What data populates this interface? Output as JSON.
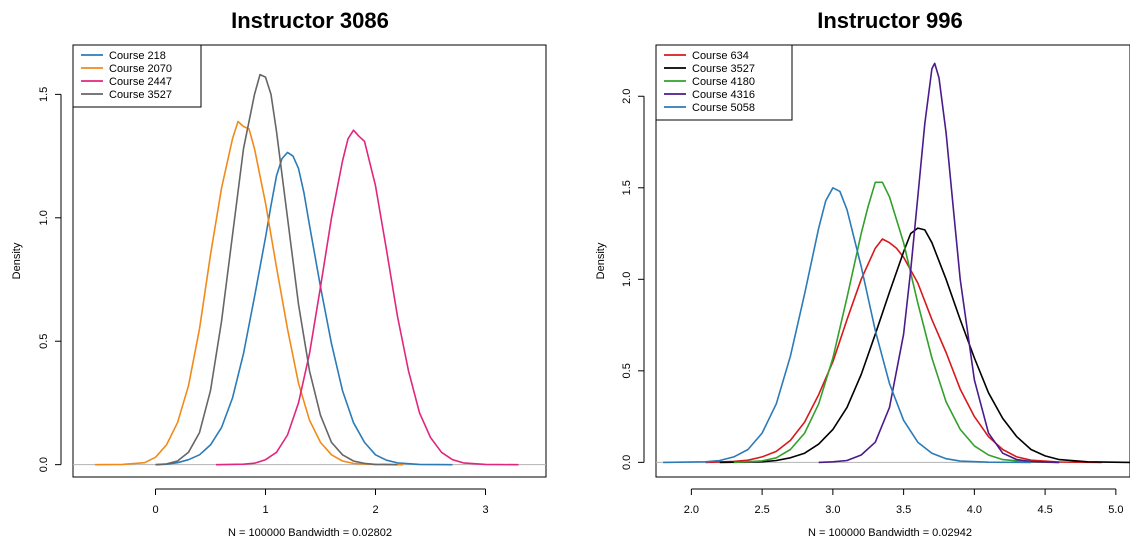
{
  "chart_data": [
    {
      "type": "line",
      "title": "Instructor  3086",
      "xlabel": "N = 100000   Bandwidth = 0.02802",
      "ylabel": "Density",
      "xlim": [
        -0.75,
        3.55
      ],
      "ylim": [
        -0.05,
        1.7
      ],
      "xticks": [
        0,
        1,
        2,
        3
      ],
      "yticks": [
        0.0,
        0.5,
        1.0,
        1.5
      ],
      "xtick_labels": [
        "0",
        "1",
        "2",
        "3"
      ],
      "ytick_labels": [
        "0.0",
        "0.5",
        "1.0",
        "1.5"
      ],
      "legend_position": "top-left",
      "series": [
        {
          "name": "Course 218",
          "color": "#2b7bb9",
          "points": [
            [
              0.0,
              0.0
            ],
            [
              0.1,
              0.002
            ],
            [
              0.2,
              0.008
            ],
            [
              0.3,
              0.02
            ],
            [
              0.4,
              0.04
            ],
            [
              0.5,
              0.08
            ],
            [
              0.6,
              0.15
            ],
            [
              0.7,
              0.27
            ],
            [
              0.8,
              0.45
            ],
            [
              0.9,
              0.68
            ],
            [
              1.0,
              0.92
            ],
            [
              1.05,
              1.05
            ],
            [
              1.1,
              1.17
            ],
            [
              1.15,
              1.24
            ],
            [
              1.2,
              1.265
            ],
            [
              1.25,
              1.25
            ],
            [
              1.3,
              1.2
            ],
            [
              1.35,
              1.1
            ],
            [
              1.4,
              0.97
            ],
            [
              1.5,
              0.72
            ],
            [
              1.6,
              0.49
            ],
            [
              1.7,
              0.3
            ],
            [
              1.8,
              0.17
            ],
            [
              1.9,
              0.09
            ],
            [
              2.0,
              0.04
            ],
            [
              2.1,
              0.018
            ],
            [
              2.2,
              0.007
            ],
            [
              2.4,
              0.001
            ],
            [
              2.7,
              0.0
            ]
          ]
        },
        {
          "name": "Course 2070",
          "color": "#f28a1a",
          "points": [
            [
              -0.55,
              0.0
            ],
            [
              -0.3,
              0.001
            ],
            [
              -0.1,
              0.008
            ],
            [
              0.0,
              0.03
            ],
            [
              0.1,
              0.08
            ],
            [
              0.2,
              0.17
            ],
            [
              0.3,
              0.32
            ],
            [
              0.4,
              0.55
            ],
            [
              0.5,
              0.85
            ],
            [
              0.6,
              1.12
            ],
            [
              0.7,
              1.32
            ],
            [
              0.75,
              1.39
            ],
            [
              0.8,
              1.37
            ],
            [
              0.85,
              1.36
            ],
            [
              0.9,
              1.28
            ],
            [
              1.0,
              1.06
            ],
            [
              1.1,
              0.8
            ],
            [
              1.2,
              0.55
            ],
            [
              1.3,
              0.33
            ],
            [
              1.4,
              0.18
            ],
            [
              1.5,
              0.09
            ],
            [
              1.6,
              0.04
            ],
            [
              1.7,
              0.015
            ],
            [
              1.8,
              0.005
            ],
            [
              2.0,
              0.001
            ],
            [
              2.25,
              0.0
            ]
          ]
        },
        {
          "name": "Course 2447",
          "color": "#e0267f",
          "points": [
            [
              0.55,
              0.0
            ],
            [
              0.8,
              0.002
            ],
            [
              0.9,
              0.006
            ],
            [
              1.0,
              0.02
            ],
            [
              1.1,
              0.05
            ],
            [
              1.2,
              0.12
            ],
            [
              1.3,
              0.25
            ],
            [
              1.4,
              0.45
            ],
            [
              1.5,
              0.72
            ],
            [
              1.6,
              1.0
            ],
            [
              1.7,
              1.23
            ],
            [
              1.75,
              1.32
            ],
            [
              1.8,
              1.355
            ],
            [
              1.85,
              1.33
            ],
            [
              1.9,
              1.31
            ],
            [
              2.0,
              1.13
            ],
            [
              2.1,
              0.87
            ],
            [
              2.2,
              0.6
            ],
            [
              2.3,
              0.38
            ],
            [
              2.4,
              0.21
            ],
            [
              2.5,
              0.11
            ],
            [
              2.6,
              0.05
            ],
            [
              2.7,
              0.02
            ],
            [
              2.8,
              0.007
            ],
            [
              3.0,
              0.001
            ],
            [
              3.3,
              0.0
            ]
          ]
        },
        {
          "name": "Course 3527",
          "color": "#666666",
          "points": [
            [
              0.0,
              0.0
            ],
            [
              0.1,
              0.003
            ],
            [
              0.2,
              0.015
            ],
            [
              0.3,
              0.05
            ],
            [
              0.4,
              0.13
            ],
            [
              0.5,
              0.3
            ],
            [
              0.6,
              0.58
            ],
            [
              0.7,
              0.93
            ],
            [
              0.8,
              1.28
            ],
            [
              0.9,
              1.5
            ],
            [
              0.95,
              1.58
            ],
            [
              1.0,
              1.57
            ],
            [
              1.05,
              1.5
            ],
            [
              1.1,
              1.35
            ],
            [
              1.2,
              1.0
            ],
            [
              1.3,
              0.65
            ],
            [
              1.4,
              0.38
            ],
            [
              1.5,
              0.2
            ],
            [
              1.6,
              0.09
            ],
            [
              1.7,
              0.04
            ],
            [
              1.8,
              0.015
            ],
            [
              1.9,
              0.005
            ],
            [
              2.0,
              0.001
            ],
            [
              2.2,
              0.0
            ]
          ]
        }
      ]
    },
    {
      "type": "line",
      "title": "Instructor  996",
      "xlabel": "N = 100000   Bandwidth = 0.02942",
      "ylabel": "Density",
      "xlim": [
        1.75,
        5.1
      ],
      "ylim": [
        -0.08,
        2.28
      ],
      "xticks": [
        2.0,
        2.5,
        3.0,
        3.5,
        4.0,
        4.5,
        5.0
      ],
      "yticks": [
        0.0,
        0.5,
        1.0,
        1.5,
        2.0
      ],
      "xtick_labels": [
        "2.0",
        "2.5",
        "3.0",
        "3.5",
        "4.0",
        "4.5",
        "5.0"
      ],
      "ytick_labels": [
        "0.0",
        "0.5",
        "1.0",
        "1.5",
        "2.0"
      ],
      "legend_position": "top-left",
      "series": [
        {
          "name": "Course 634",
          "color": "#d7191c",
          "points": [
            [
              2.1,
              0.0
            ],
            [
              2.3,
              0.005
            ],
            [
              2.4,
              0.012
            ],
            [
              2.5,
              0.03
            ],
            [
              2.6,
              0.06
            ],
            [
              2.7,
              0.12
            ],
            [
              2.8,
              0.22
            ],
            [
              2.9,
              0.37
            ],
            [
              3.0,
              0.55
            ],
            [
              3.1,
              0.78
            ],
            [
              3.2,
              1.0
            ],
            [
              3.3,
              1.17
            ],
            [
              3.35,
              1.22
            ],
            [
              3.4,
              1.2
            ],
            [
              3.45,
              1.17
            ],
            [
              3.5,
              1.12
            ],
            [
              3.6,
              0.98
            ],
            [
              3.7,
              0.78
            ],
            [
              3.8,
              0.6
            ],
            [
              3.9,
              0.4
            ],
            [
              4.0,
              0.25
            ],
            [
              4.1,
              0.14
            ],
            [
              4.2,
              0.07
            ],
            [
              4.3,
              0.03
            ],
            [
              4.4,
              0.012
            ],
            [
              4.6,
              0.002
            ],
            [
              4.9,
              0.0
            ]
          ]
        },
        {
          "name": "Course 3527",
          "color": "#000000",
          "points": [
            [
              2.2,
              0.0
            ],
            [
              2.5,
              0.003
            ],
            [
              2.6,
              0.01
            ],
            [
              2.7,
              0.025
            ],
            [
              2.8,
              0.05
            ],
            [
              2.9,
              0.1
            ],
            [
              3.0,
              0.18
            ],
            [
              3.1,
              0.3
            ],
            [
              3.2,
              0.48
            ],
            [
              3.3,
              0.7
            ],
            [
              3.4,
              0.93
            ],
            [
              3.5,
              1.15
            ],
            [
              3.55,
              1.25
            ],
            [
              3.6,
              1.28
            ],
            [
              3.65,
              1.27
            ],
            [
              3.7,
              1.2
            ],
            [
              3.8,
              1.0
            ],
            [
              3.9,
              0.78
            ],
            [
              4.0,
              0.57
            ],
            [
              4.1,
              0.38
            ],
            [
              4.2,
              0.24
            ],
            [
              4.3,
              0.14
            ],
            [
              4.4,
              0.07
            ],
            [
              4.5,
              0.035
            ],
            [
              4.6,
              0.015
            ],
            [
              4.8,
              0.003
            ],
            [
              5.1,
              0.0
            ]
          ]
        },
        {
          "name": "Course 4180",
          "color": "#33a02c",
          "points": [
            [
              2.3,
              0.0
            ],
            [
              2.5,
              0.008
            ],
            [
              2.6,
              0.025
            ],
            [
              2.7,
              0.07
            ],
            [
              2.8,
              0.16
            ],
            [
              2.9,
              0.32
            ],
            [
              3.0,
              0.57
            ],
            [
              3.1,
              0.9
            ],
            [
              3.2,
              1.25
            ],
            [
              3.25,
              1.4
            ],
            [
              3.3,
              1.53
            ],
            [
              3.35,
              1.53
            ],
            [
              3.4,
              1.45
            ],
            [
              3.5,
              1.2
            ],
            [
              3.6,
              0.87
            ],
            [
              3.7,
              0.57
            ],
            [
              3.8,
              0.33
            ],
            [
              3.9,
              0.18
            ],
            [
              4.0,
              0.09
            ],
            [
              4.1,
              0.04
            ],
            [
              4.2,
              0.015
            ],
            [
              4.4,
              0.002
            ],
            [
              4.6,
              0.0
            ]
          ]
        },
        {
          "name": "Course 4316",
          "color": "#4b1a8c",
          "points": [
            [
              2.9,
              0.0
            ],
            [
              3.0,
              0.003
            ],
            [
              3.1,
              0.01
            ],
            [
              3.2,
              0.04
            ],
            [
              3.3,
              0.11
            ],
            [
              3.4,
              0.3
            ],
            [
              3.5,
              0.7
            ],
            [
              3.55,
              1.05
            ],
            [
              3.6,
              1.45
            ],
            [
              3.65,
              1.85
            ],
            [
              3.7,
              2.15
            ],
            [
              3.72,
              2.18
            ],
            [
              3.75,
              2.1
            ],
            [
              3.8,
              1.8
            ],
            [
              3.85,
              1.4
            ],
            [
              3.9,
              1.0
            ],
            [
              4.0,
              0.45
            ],
            [
              4.1,
              0.16
            ],
            [
              4.2,
              0.05
            ],
            [
              4.3,
              0.015
            ],
            [
              4.4,
              0.004
            ],
            [
              4.6,
              0.0
            ]
          ]
        },
        {
          "name": "Course 5058",
          "color": "#2b7bb9",
          "points": [
            [
              1.8,
              0.0
            ],
            [
              2.1,
              0.003
            ],
            [
              2.2,
              0.01
            ],
            [
              2.3,
              0.03
            ],
            [
              2.4,
              0.07
            ],
            [
              2.5,
              0.16
            ],
            [
              2.6,
              0.32
            ],
            [
              2.7,
              0.58
            ],
            [
              2.8,
              0.92
            ],
            [
              2.9,
              1.28
            ],
            [
              2.95,
              1.43
            ],
            [
              3.0,
              1.5
            ],
            [
              3.05,
              1.48
            ],
            [
              3.1,
              1.38
            ],
            [
              3.2,
              1.07
            ],
            [
              3.3,
              0.72
            ],
            [
              3.4,
              0.43
            ],
            [
              3.5,
              0.23
            ],
            [
              3.6,
              0.11
            ],
            [
              3.7,
              0.05
            ],
            [
              3.8,
              0.02
            ],
            [
              3.9,
              0.007
            ],
            [
              4.1,
              0.001
            ],
            [
              4.4,
              0.0
            ]
          ]
        }
      ]
    }
  ]
}
